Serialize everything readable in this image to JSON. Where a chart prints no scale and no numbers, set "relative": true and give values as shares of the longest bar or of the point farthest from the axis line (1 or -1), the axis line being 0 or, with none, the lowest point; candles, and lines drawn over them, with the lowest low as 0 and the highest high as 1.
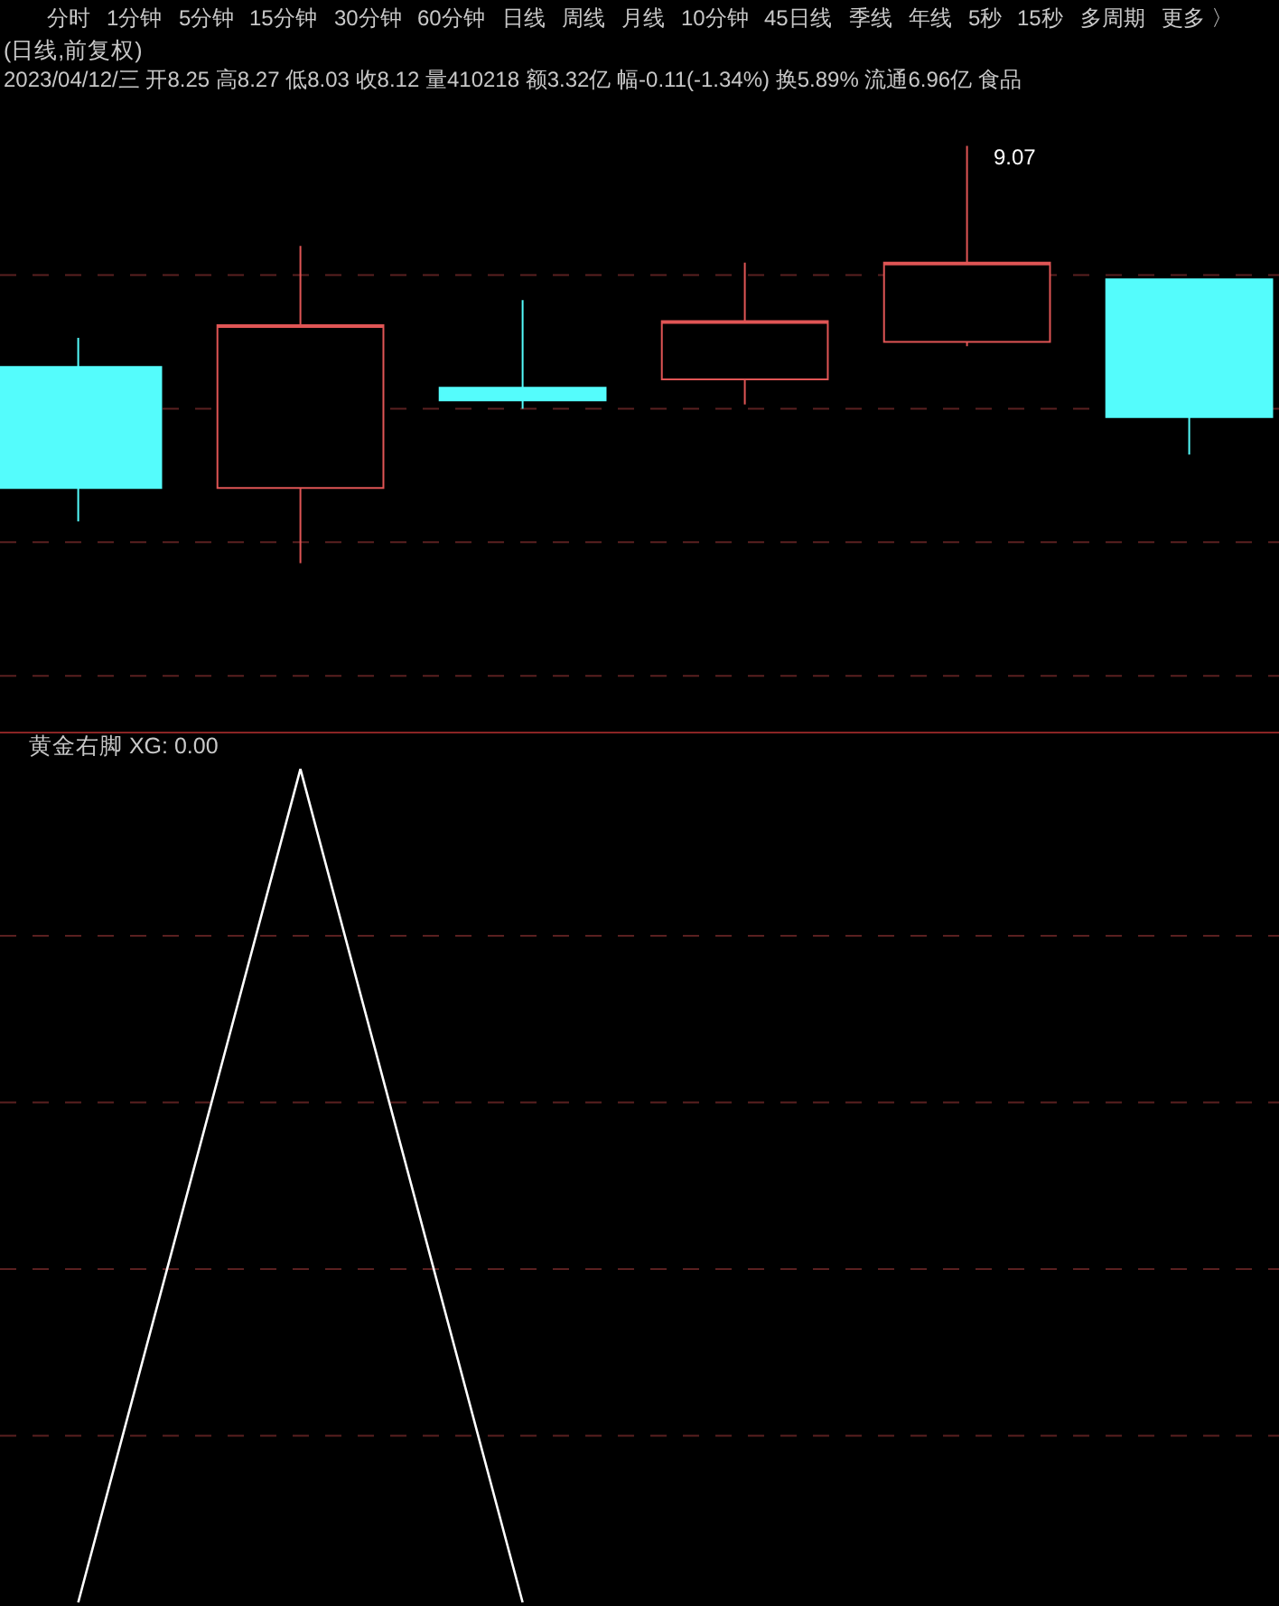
{
  "chart_data": [
    {
      "type": "other",
      "annotations": [
        "分时",
        "1分钟",
        "5分钟",
        "15分钟",
        "30分钟",
        "60分钟",
        "日线",
        "周线",
        "月线",
        "10分钟",
        "45日线",
        "季线",
        "年线",
        "5秒",
        "15秒",
        "多周期",
        "更多 〉"
      ]
    },
    {
      "type": "candlestick",
      "title": "(日线,前复权)",
      "subtitle": "2023/04/12/三 开8.25 高8.27 低8.03 收8.12 量410218 额3.32亿 幅-0.11(-1.34%) 换5.89% 流通6.96亿 食品",
      "relative": true,
      "categories": [
        null,
        null,
        null,
        null,
        null,
        null
      ],
      "ohlc": [
        [
          0.47,
          0.54,
          0.1,
          0.18
        ],
        [
          0.18,
          0.76,
          0,
          0.57
        ],
        [
          0.42,
          0.63,
          0.37,
          0.39
        ],
        [
          0.44,
          0.72,
          0.38,
          0.58
        ],
        [
          0.53,
          1,
          0.52,
          0.72
        ],
        [
          0.68,
          0.68,
          0.26,
          0.35
        ]
      ],
      "colors": [
        "#54fcfc",
        "#e05555",
        "#54fcfc",
        "#e05555",
        "#e05555",
        "#54fcfc"
      ],
      "annotations": [
        "9.07"
      ],
      "ref_lines": [
        {
          "axis": "y",
          "value": 0.69,
          "color": "#5a2020",
          "line_style": "dashed"
        },
        {
          "axis": "y",
          "value": 0.37,
          "color": "#5a2020",
          "line_style": "dashed"
        },
        {
          "axis": "y",
          "value": 0.05,
          "color": "#5a2020",
          "line_style": "dashed"
        },
        {
          "axis": "y",
          "value": -0.27,
          "color": "#5a2020",
          "line_style": "dashed"
        }
      ]
    },
    {
      "type": "line",
      "title": "黄金右脚 XG: 0.00",
      "relative": true,
      "categories": [
        null,
        null,
        null,
        null,
        null,
        null
      ],
      "series": [
        {
          "color": "#ffffff",
          "values": [
            0,
            1,
            0,
            null,
            null,
            null
          ]
        }
      ],
      "ref_lines": [
        {
          "axis": "y",
          "value": 0.8,
          "color": "#5a2020",
          "line_style": "dashed"
        },
        {
          "axis": "y",
          "value": 0.6,
          "color": "#5a2020",
          "line_style": "dashed"
        },
        {
          "axis": "y",
          "value": 0.4,
          "color": "#5a2020",
          "line_style": "dashed"
        },
        {
          "axis": "y",
          "value": 0.2,
          "color": "#5a2020",
          "line_style": "dashed"
        }
      ]
    }
  ]
}
